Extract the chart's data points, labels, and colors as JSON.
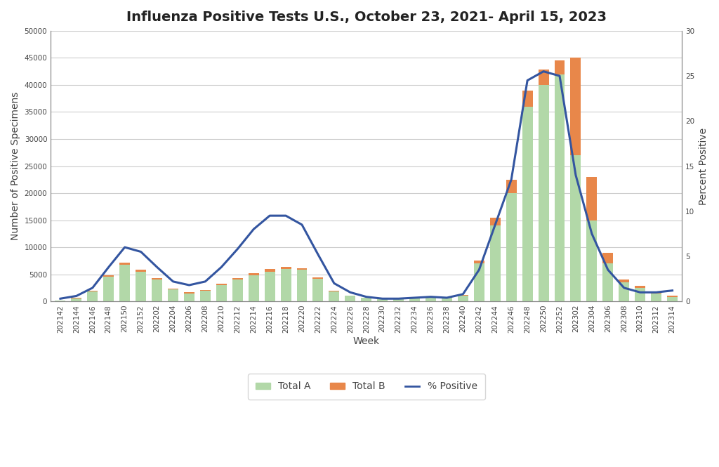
{
  "title": "Influenza Positive Tests U.S., October 23, 2021- April 15, 2023",
  "xlabel": "Week",
  "ylabel_left": "Number of Positive Specimens",
  "ylabel_right": "Percent Positive",
  "background_color": "#ffffff",
  "plot_bg_color": "#ffffff",
  "ylim_left": [
    0,
    50000
  ],
  "ylim_right": [
    0,
    30
  ],
  "yticks_left": [
    0,
    5000,
    10000,
    15000,
    20000,
    25000,
    30000,
    35000,
    40000,
    45000,
    50000
  ],
  "yticks_right": [
    0,
    5,
    10,
    15,
    20,
    25,
    30
  ],
  "weeks": [
    "202142",
    "202144",
    "202146",
    "202148",
    "202150",
    "202152",
    "202202",
    "202204",
    "202206",
    "202208",
    "202210",
    "202212",
    "202214",
    "202216",
    "202218",
    "202220",
    "202222",
    "202224",
    "202226",
    "202228",
    "202230",
    "202232",
    "202234",
    "202236",
    "202238",
    "202240",
    "202242",
    "202244",
    "202246",
    "202248",
    "202250",
    "202252",
    "202302",
    "202304",
    "202306",
    "202308",
    "202310",
    "202312",
    "202314"
  ],
  "total_a": [
    100,
    500,
    1800,
    4500,
    6800,
    5500,
    4000,
    2200,
    1500,
    2000,
    3000,
    4000,
    4800,
    5500,
    6000,
    5800,
    4200,
    1800,
    1000,
    600,
    400,
    500,
    700,
    900,
    700,
    1000,
    7000,
    14000,
    20000,
    36000,
    40000,
    42000,
    27000,
    15000,
    7000,
    3500,
    2500,
    1500,
    800
  ],
  "total_b": [
    50,
    100,
    150,
    300,
    350,
    400,
    300,
    200,
    150,
    150,
    200,
    300,
    400,
    450,
    350,
    300,
    200,
    100,
    80,
    60,
    50,
    50,
    60,
    80,
    80,
    150,
    600,
    1500,
    2500,
    3000,
    2800,
    2500,
    18000,
    8000,
    2000,
    600,
    400,
    300,
    200
  ],
  "pct_positive": [
    0.3,
    0.6,
    1.5,
    3.8,
    6.0,
    5.5,
    3.8,
    2.2,
    1.8,
    2.2,
    3.8,
    5.8,
    8.0,
    9.5,
    9.5,
    8.5,
    5.2,
    2.0,
    1.0,
    0.5,
    0.3,
    0.3,
    0.4,
    0.5,
    0.4,
    0.8,
    3.5,
    8.5,
    13.5,
    24.5,
    25.5,
    25.0,
    14.0,
    7.5,
    3.5,
    1.5,
    1.0,
    1.0,
    1.2
  ],
  "color_a": "#b2d8a8",
  "color_b": "#e8874a",
  "color_line": "#3355a0",
  "color_grid": "#cccccc",
  "title_color": "#222222",
  "label_color": "#444444",
  "tick_color": "#444444",
  "axis_color": "#888888",
  "legend_bg": "#ffffff",
  "title_fontsize": 14,
  "label_fontsize": 10,
  "tick_fontsize": 7.5
}
